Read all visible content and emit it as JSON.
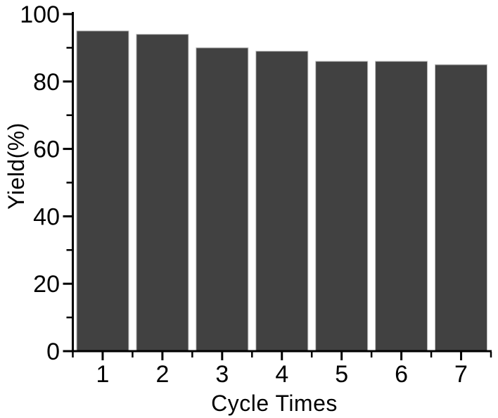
{
  "figure": {
    "background_color": "#ffffff"
  },
  "chart_data": {
    "type": "bar",
    "title": "",
    "categories": [
      "1",
      "2",
      "3",
      "4",
      "5",
      "6",
      "7"
    ],
    "series": [
      {
        "name": "Yield",
        "values": [
          95,
          94,
          90,
          89,
          86,
          86,
          85
        ]
      }
    ],
    "xlabel": "Cycle Times",
    "ylabel": "Yield(%)",
    "ylim": [
      0,
      100
    ],
    "y_major_ticks": [
      0,
      20,
      40,
      60,
      80,
      100
    ],
    "y_minor_ticks": [
      10,
      30,
      50,
      70,
      90
    ],
    "x_tick_labels": [
      "1",
      "2",
      "3",
      "4",
      "5",
      "6",
      "7"
    ],
    "grid": false,
    "legend_position": "none",
    "bar_fill_color": "#414141",
    "bar_border_color": "#bfbfbf",
    "axis_color": "#000000",
    "text_color": "#000000"
  }
}
